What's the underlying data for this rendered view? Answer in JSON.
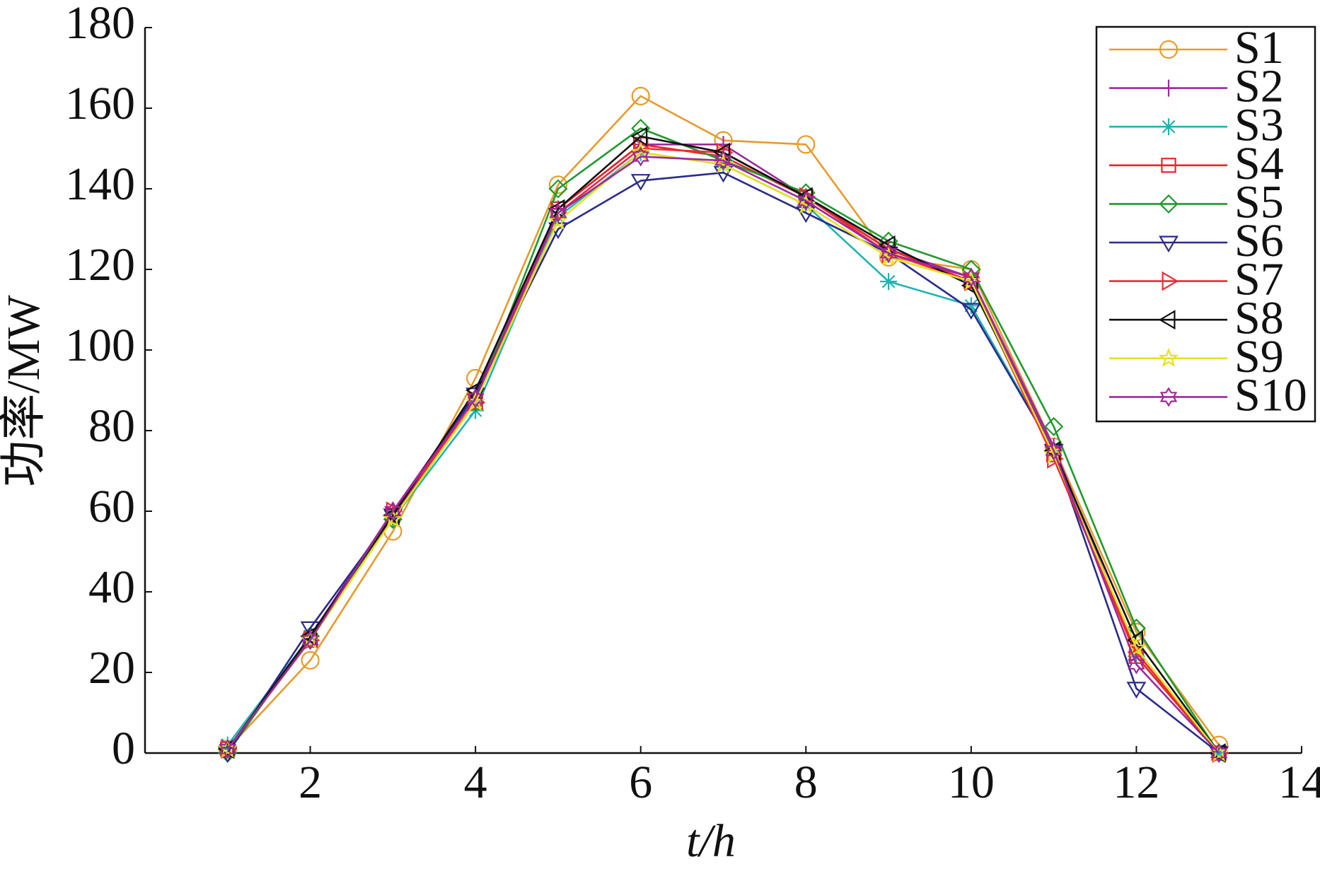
{
  "chart_data": {
    "type": "line",
    "xlabel": "t/h",
    "ylabel": "功率/MW",
    "x": [
      1,
      2,
      3,
      4,
      5,
      6,
      7,
      8,
      9,
      10,
      11,
      12,
      13
    ],
    "xlim": [
      0,
      14
    ],
    "xticks": [
      2,
      4,
      6,
      8,
      10,
      12,
      14
    ],
    "ylim": [
      0,
      180
    ],
    "yticks": [
      0,
      20,
      40,
      60,
      80,
      100,
      120,
      140,
      160,
      180
    ],
    "legend": "upper right",
    "series": [
      {
        "name": "S1",
        "color": "#e89a2c",
        "marker": "circle",
        "values": [
          1,
          23,
          55,
          93,
          141,
          163,
          152,
          151,
          123,
          120,
          76,
          30,
          2
        ]
      },
      {
        "name": "S2",
        "color": "#9b2b9b",
        "marker": "plus",
        "values": [
          1,
          29,
          60,
          89,
          135,
          151,
          151,
          138,
          125,
          118,
          76,
          25,
          0
        ]
      },
      {
        "name": "S3",
        "color": "#1fb3b3",
        "marker": "asterisk",
        "values": [
          2,
          29,
          58,
          85,
          133,
          149,
          146,
          136,
          117,
          111,
          75,
          24,
          0
        ]
      },
      {
        "name": "S4",
        "color": "#e8262b",
        "marker": "square",
        "values": [
          1,
          28,
          59,
          87,
          135,
          151,
          148,
          138,
          125,
          117,
          74,
          24,
          0
        ]
      },
      {
        "name": "S5",
        "color": "#1f9a2e",
        "marker": "diamond",
        "values": [
          0,
          29,
          58,
          87,
          140,
          155,
          147,
          139,
          127,
          120,
          81,
          31,
          0
        ]
      },
      {
        "name": "S6",
        "color": "#2b2b8a",
        "marker": "triangle-down",
        "values": [
          0,
          31,
          59,
          89,
          130,
          142,
          144,
          134,
          124,
          110,
          75,
          16,
          0
        ]
      },
      {
        "name": "S7",
        "color": "#ee2a3a",
        "marker": "triangle-right",
        "values": [
          1,
          28,
          60,
          87,
          134,
          150,
          149,
          138,
          124,
          117,
          73,
          25,
          0
        ]
      },
      {
        "name": "S8",
        "color": "#111111",
        "marker": "triangle-left",
        "values": [
          1,
          29,
          59,
          90,
          135,
          153,
          149,
          138,
          126,
          116,
          75,
          28,
          0
        ]
      },
      {
        "name": "S9",
        "color": "#e6e21e",
        "marker": "pentagram",
        "values": [
          1,
          28,
          58,
          87,
          132,
          149,
          146,
          136,
          123,
          117,
          74,
          26,
          0
        ]
      },
      {
        "name": "S10",
        "color": "#a0289a",
        "marker": "hexagram",
        "values": [
          1,
          28,
          60,
          88,
          134,
          148,
          147,
          137,
          124,
          118,
          75,
          22,
          0
        ]
      }
    ]
  }
}
